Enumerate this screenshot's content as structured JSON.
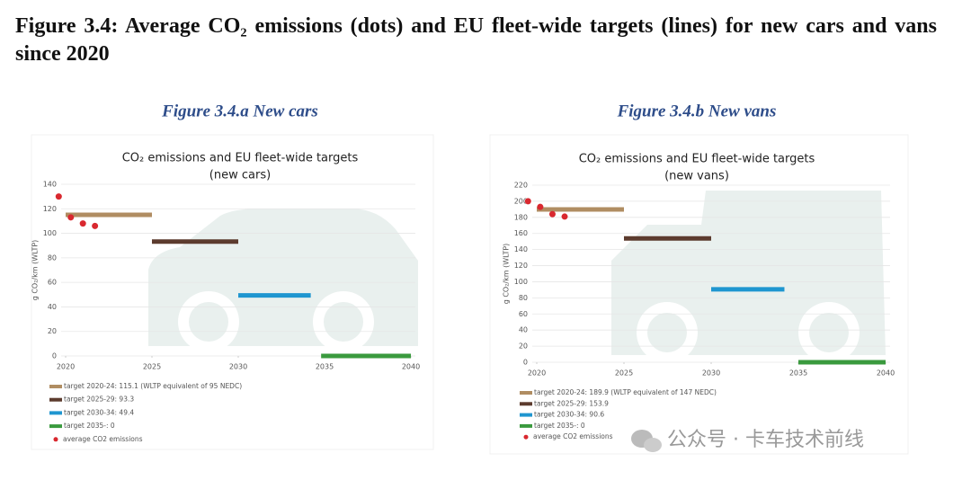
{
  "title": "Figure 3.4: Average CO₂ emissions (dots) and EU fleet-wide targets (lines) for new cars and vans since 2020",
  "watermark": "公众号 · 卡车技术前线",
  "chart_data": [
    {
      "type": "line",
      "caption": "Figure 3.4.a New cars",
      "title": "CO₂ emissions and EU fleet-wide targets",
      "subtitle": "(new cars)",
      "y_label": "g CO₂/km (WLTP)",
      "xlim": [
        2020,
        2040
      ],
      "xticks": [
        2020,
        2025,
        2030,
        2035,
        2040
      ],
      "ylim": [
        0,
        140
      ],
      "yticks": [
        0,
        20,
        40,
        60,
        80,
        100,
        120,
        140
      ],
      "grid": true,
      "series": [
        {
          "name": "target 2020-24: 115.1 (WLTP equivalent of 95 NEDC)",
          "color": "#b08d62",
          "kind": "line",
          "x": [
            2020,
            2025
          ],
          "values": [
            115.1,
            115.1
          ]
        },
        {
          "name": "target 2025-29: 93.3",
          "color": "#5c3b2e",
          "kind": "line",
          "x": [
            2025,
            2030
          ],
          "values": [
            93.3,
            93.3
          ]
        },
        {
          "name": "target 2030-34: 49.4",
          "color": "#1f96d0",
          "kind": "line",
          "x": [
            2030,
            2034.2
          ],
          "values": [
            49.4,
            49.4
          ]
        },
        {
          "name": "target 2035-: 0",
          "color": "#3a9a3e",
          "kind": "line",
          "x": [
            2034.8,
            2040
          ],
          "values": [
            0,
            0
          ]
        },
        {
          "name": "average CO2 emissions",
          "color": "#d9282f",
          "kind": "dots",
          "x": [
            2019.6,
            2020.3,
            2021,
            2021.7
          ],
          "values": [
            130,
            113,
            108,
            106
          ]
        }
      ]
    },
    {
      "type": "line",
      "caption": "Figure 3.4.b New vans",
      "title": "CO₂ emissions and EU fleet-wide targets",
      "subtitle": "(new vans)",
      "y_label": "g CO₂/km (WLTP)",
      "xlim": [
        2020,
        2040
      ],
      "xticks": [
        2020,
        2025,
        2030,
        2035,
        2040
      ],
      "ylim": [
        0,
        220
      ],
      "yticks": [
        0,
        20,
        40,
        60,
        80,
        100,
        120,
        140,
        160,
        180,
        200,
        220
      ],
      "grid": true,
      "series": [
        {
          "name": "target 2020-24: 189.9 (WLTP equivalent of 147 NEDC)",
          "color": "#b08d62",
          "kind": "line",
          "x": [
            2020,
            2025
          ],
          "values": [
            189.9,
            189.9
          ]
        },
        {
          "name": "target 2025-29: 153.9",
          "color": "#5c3b2e",
          "kind": "line",
          "x": [
            2025,
            2030
          ],
          "values": [
            153.9,
            153.9
          ]
        },
        {
          "name": "target 2030-34: 90.6",
          "color": "#1f96d0",
          "kind": "line",
          "x": [
            2030,
            2034.2
          ],
          "values": [
            90.6,
            90.6
          ]
        },
        {
          "name": "target 2035-: 0",
          "color": "#3a9a3e",
          "kind": "line",
          "x": [
            2035,
            2040
          ],
          "values": [
            0,
            0
          ]
        },
        {
          "name": "average CO2 emissions",
          "color": "#d9282f",
          "kind": "dots",
          "x": [
            2019.5,
            2020.2,
            2020.9,
            2021.6
          ],
          "values": [
            200,
            193,
            184,
            181
          ]
        }
      ]
    }
  ]
}
